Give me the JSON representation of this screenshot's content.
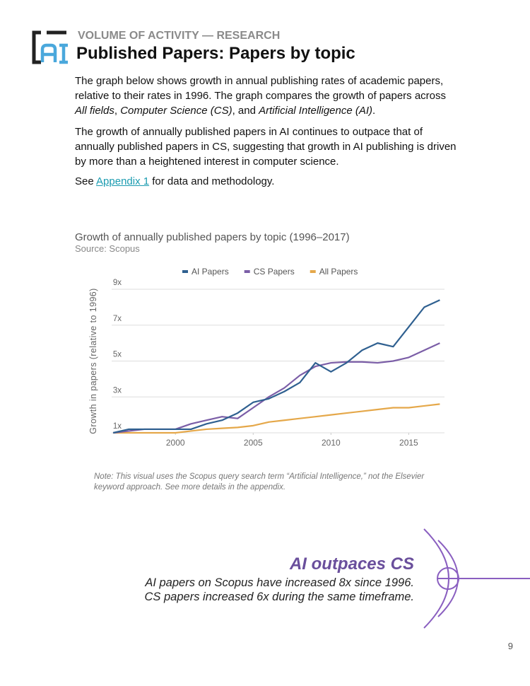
{
  "header": {
    "section": "VOLUME OF ACTIVITY — RESEARCH",
    "title": "Published Papers: Papers by topic"
  },
  "body": {
    "p1": [
      "The graph below shows growth in annual publishing rates of academic papers, relative to their rates in 1996. The graph compares the growth of papers across ",
      "All fields",
      ", ",
      "Computer Science (CS)",
      ", and ",
      "Artificial Intelligence (AI)",
      "."
    ],
    "p2": "The growth of annually published papers in AI continues to outpace that of annually published papers in CS, suggesting that growth in AI publishing is driven by more than a heightened interest in computer science.",
    "p3": [
      "See ",
      "Appendix 1",
      " for data and methodology."
    ]
  },
  "chart_data": {
    "type": "line",
    "title": "Growth of annually published papers by topic (1996–2017)",
    "subtitle": "Source: Scopus",
    "ylabel": "Growth in papers (relative to 1996)",
    "x": [
      1996,
      1997,
      1998,
      1999,
      2000,
      2001,
      2002,
      2003,
      2004,
      2005,
      2006,
      2007,
      2008,
      2009,
      2010,
      2011,
      2012,
      2013,
      2014,
      2015,
      2016,
      2017
    ],
    "series": [
      {
        "name": "AI Papers",
        "color": "#2f6090",
        "values": [
          1.0,
          1.2,
          1.2,
          1.2,
          1.2,
          1.2,
          1.5,
          1.7,
          2.1,
          2.7,
          2.9,
          3.3,
          3.8,
          4.9,
          4.4,
          4.9,
          5.6,
          6.0,
          5.8,
          6.9,
          8.0,
          8.4
        ]
      },
      {
        "name": "CS Papers",
        "color": "#7b5ea7",
        "values": [
          1.0,
          1.1,
          1.2,
          1.2,
          1.2,
          1.5,
          1.7,
          1.9,
          1.8,
          2.4,
          3.0,
          3.5,
          4.2,
          4.7,
          4.9,
          4.95,
          4.95,
          4.9,
          5.0,
          5.2,
          5.6,
          6.0
        ]
      },
      {
        "name": "All Papers",
        "color": "#e5a84a",
        "values": [
          1.0,
          1.0,
          1.0,
          1.0,
          1.0,
          1.1,
          1.2,
          1.25,
          1.3,
          1.4,
          1.6,
          1.7,
          1.8,
          1.9,
          2.0,
          2.1,
          2.2,
          2.3,
          2.4,
          2.4,
          2.5,
          2.6
        ]
      }
    ],
    "xlim": [
      1995.9,
      2017.3
    ],
    "ylim": [
      1,
      9
    ],
    "xticks": [
      2000,
      2005,
      2010,
      2015
    ],
    "yticks": [
      {
        "value": 1,
        "label": "1x"
      },
      {
        "value": 3,
        "label": "3x"
      },
      {
        "value": 5,
        "label": "5x"
      },
      {
        "value": 7,
        "label": "7x"
      },
      {
        "value": 9,
        "label": "9x"
      }
    ],
    "grid": true,
    "legend": "top"
  },
  "note": "Note: This visual uses the Scopus query search term “Artificial Intelligence,” not the Elsevier keyword approach. See more details in the appendix.",
  "callout": {
    "title": "AI outpaces CS",
    "lines": [
      "AI papers on Scopus have increased 8x since 1996.",
      "CS papers increased 6x during the same timeframe."
    ]
  },
  "page_number": "9"
}
